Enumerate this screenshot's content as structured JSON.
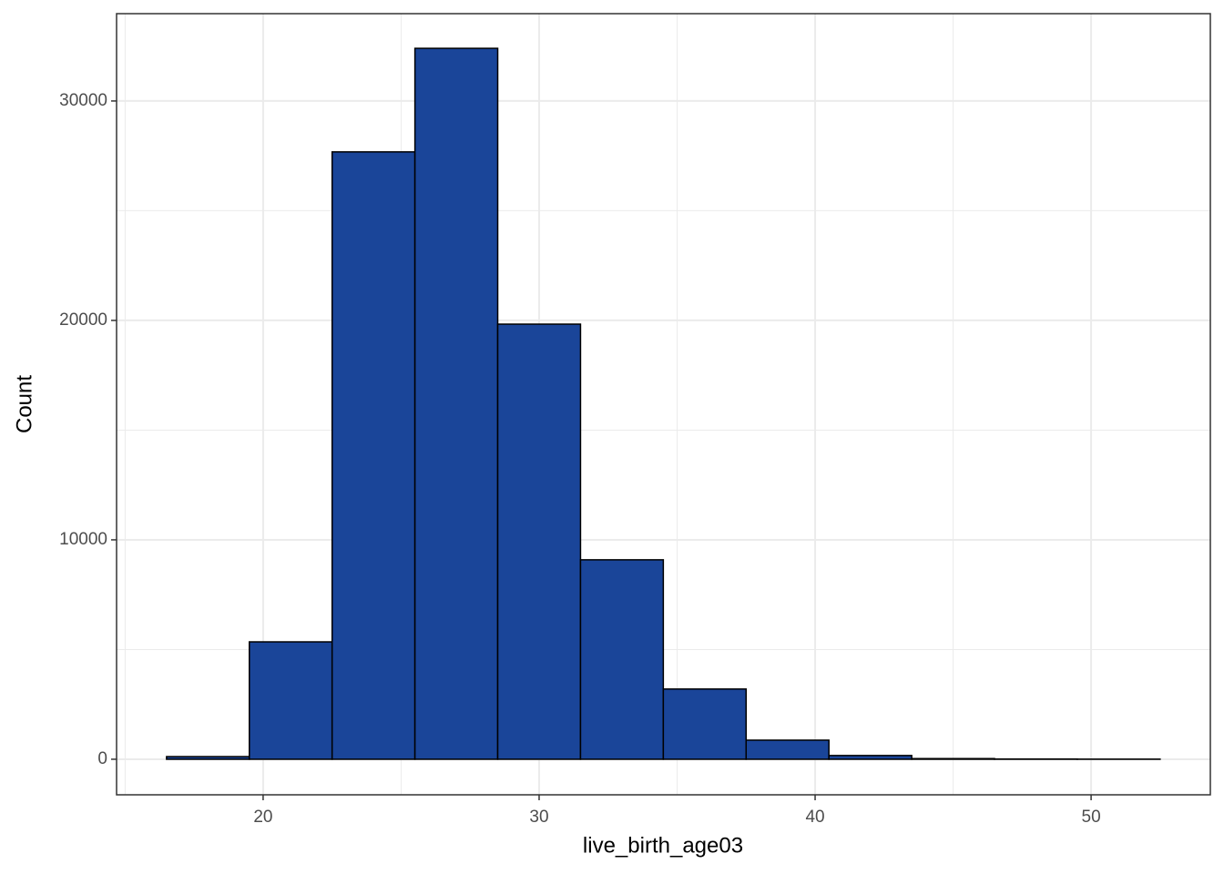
{
  "chart_data": {
    "type": "histogram",
    "xlabel": "live_birth_age03",
    "ylabel": "Count",
    "bins": [
      16.5,
      19.5,
      22.5,
      25.5,
      28.5,
      31.5,
      34.5,
      37.5,
      40.5,
      43.5,
      46.5,
      49.5,
      52.5
    ],
    "counts": [
      120,
      5350,
      27680,
      32400,
      19830,
      9090,
      3200,
      870,
      170,
      30,
      10,
      5
    ],
    "color": "#1a4599",
    "xlim": [
      14.69,
      54.32
    ],
    "xticks": [
      20,
      30,
      40,
      50
    ],
    "ylim": [
      -1620,
      33980
    ],
    "yticks": [
      0,
      10000,
      20000,
      30000
    ],
    "x_minor_grid": [
      15,
      25,
      35,
      45
    ],
    "y_minor_grid": [
      5000,
      15000,
      25000
    ],
    "grid": true
  }
}
